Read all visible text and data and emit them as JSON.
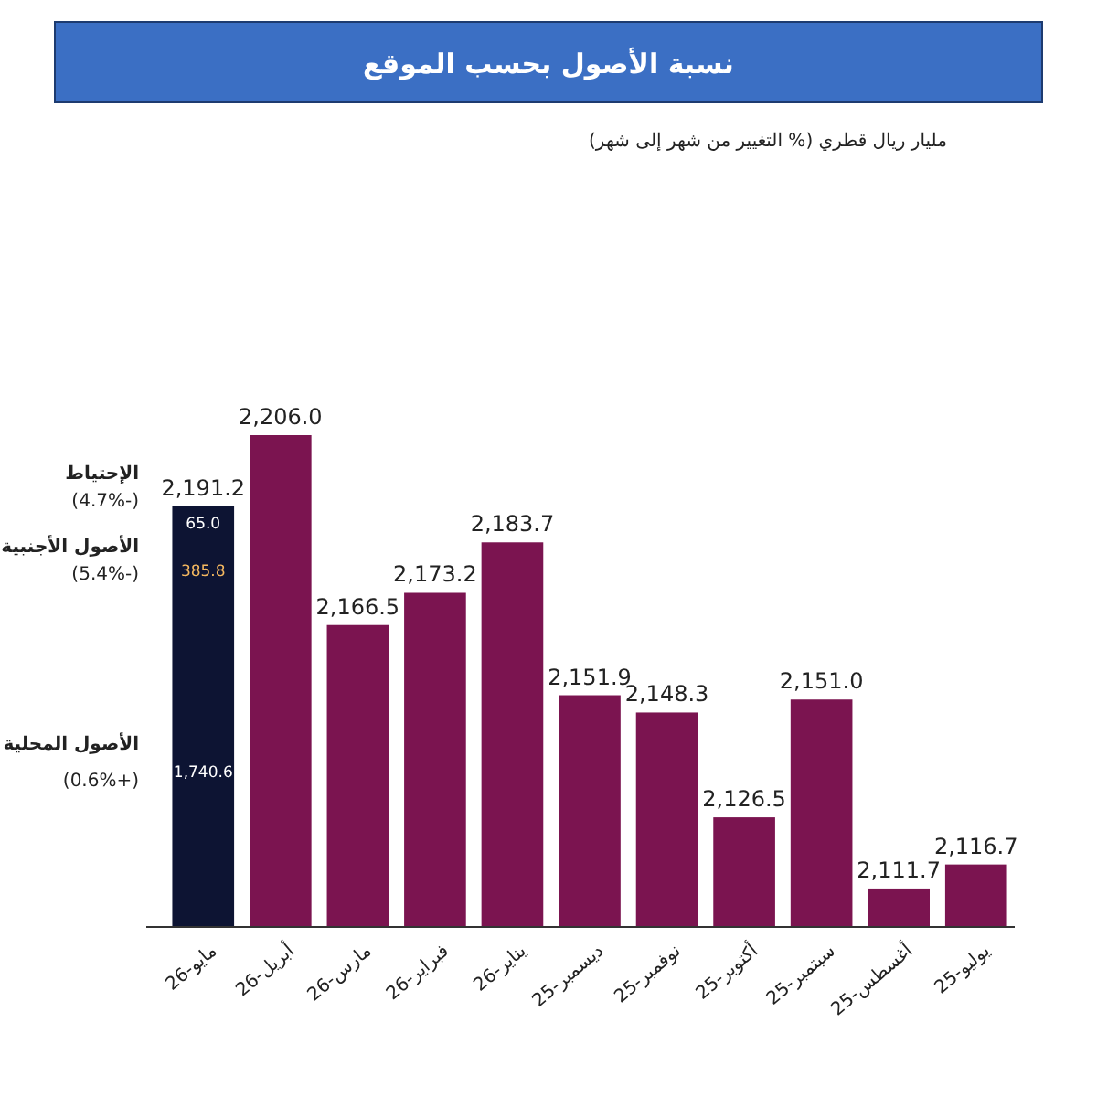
{
  "chart_data": {
    "type": "bar",
    "title": "نسبة الأصول بحسب الموقع",
    "subtitle": "مليار ريال قطري (% التغيير من شهر إلى شهر)",
    "categories": [
      "مايو-26",
      "أبريل-26",
      "مارس-26",
      "فبراير-26",
      "يناير-26",
      "ديسمبر-25",
      "نوفمبر-25",
      "أكتوبر-25",
      "سبتمبر-25",
      "أغسطس-25",
      "يوليو-25"
    ],
    "values": [
      2191.2,
      2206.0,
      2166.5,
      2173.2,
      2183.7,
      2151.9,
      2148.3,
      2126.5,
      2151.0,
      2111.7,
      2116.7
    ],
    "colors": [
      "#0d1433",
      "#7b1450",
      "#7b1450",
      "#7b1450",
      "#7b1450",
      "#7b1450",
      "#7b1450",
      "#7b1450",
      "#7b1450",
      "#7b1450",
      "#7b1450"
    ],
    "value_labels": [
      "2,191.2",
      "2,206.0",
      "2,166.5",
      "2,173.2",
      "2,183.7",
      "2,151.9",
      "2,148.3",
      "2,126.5",
      "2,151.0",
      "2,111.7",
      "2,116.7"
    ],
    "ylim": [
      2103.7,
      2206.0
    ],
    "relative": false,
    "annotations": [
      "65.0",
      "385.8",
      "1,740.6",
      "الإحتياط",
      "(-4.7%)",
      "الأصول الأجنبية",
      "(-5.4%)",
      "الأصول المحلية",
      "(+0.6%)"
    ],
    "legend": false
  }
}
